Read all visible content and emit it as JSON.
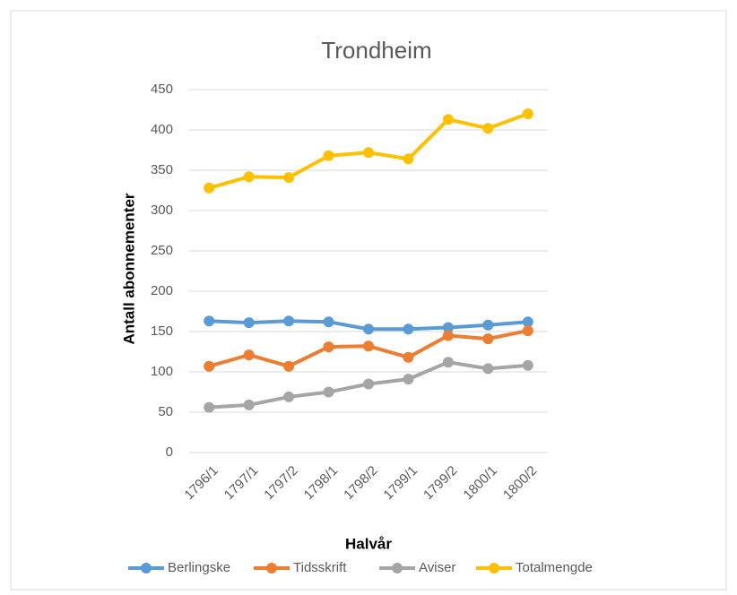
{
  "chart_data": {
    "type": "line",
    "title": "Trondheim",
    "x_label": "Halvår",
    "y_label": "Antall abonnementer",
    "categories": [
      "1796/1",
      "1797/1",
      "1797/2",
      "1798/1",
      "1798/2",
      "1799/1",
      "1799/2",
      "1800/1",
      "1800/2"
    ],
    "series": [
      {
        "name": "Berlingske",
        "color": "#5b9bd5",
        "values": [
          163,
          161,
          163,
          162,
          153,
          153,
          155,
          158,
          162
        ]
      },
      {
        "name": "Tidsskrift",
        "color": "#ed7d31",
        "values": [
          107,
          121,
          107,
          131,
          132,
          118,
          145,
          141,
          151
        ]
      },
      {
        "name": "Aviser",
        "color": "#a5a5a5",
        "values": [
          56,
          59,
          69,
          75,
          85,
          91,
          112,
          104,
          108
        ]
      },
      {
        "name": "Totalmengde",
        "color": "#ffc000",
        "values": [
          328,
          342,
          341,
          368,
          372,
          364,
          413,
          402,
          420
        ]
      }
    ],
    "ylim": [
      0,
      450
    ],
    "yticks": [
      0,
      50,
      100,
      150,
      200,
      250,
      300,
      350,
      400,
      450
    ],
    "grid": true,
    "legend": "bottom"
  }
}
